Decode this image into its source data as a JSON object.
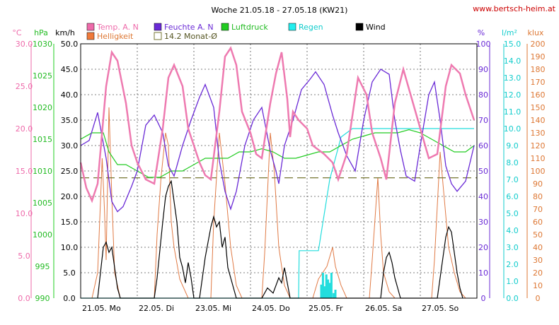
{
  "chart_data": {
    "type": "line",
    "title": "Woche 21.05.18 - 27.05.18 (KW21)",
    "source": "www.bertsch-heim.at",
    "x_days": [
      "21.05.",
      "22.05.",
      "23.05.",
      "24.05.",
      "25.05.",
      "26.05.",
      "27.05."
    ],
    "x_day_labels": [
      "Mo",
      "Di",
      "Mi",
      "Do",
      "Fr",
      "Sa",
      "So"
    ],
    "legend": {
      "temp": "Temp. A. N",
      "feuchte": "Feuchte A. N",
      "luftdruck": "Luftdruck",
      "regen": "Regen",
      "wind": "Wind",
      "helligkeit": "Helligkeit",
      "monat": "14.2 Monat-Ø"
    },
    "axes": {
      "temp": {
        "unit": "°C",
        "min": 0,
        "max": 30,
        "ticks": [
          "0.0",
          "5.0",
          "10.0",
          "15.0",
          "20.0",
          "25.0",
          "30.0"
        ],
        "color": "#ee6aaa"
      },
      "druck": {
        "unit": "hPa",
        "min": 990,
        "max": 1030,
        "ticks": [
          "990",
          "995",
          "1000",
          "1005",
          "1010",
          "1015",
          "1020",
          "1025",
          "1030"
        ],
        "color": "#22bb22"
      },
      "wind": {
        "unit": "km/h",
        "min": 0,
        "max": 50,
        "ticks": [
          "0.0",
          "5.0",
          "10.0",
          "15.0",
          "20.0",
          "25.0",
          "30.0",
          "35.0",
          "40.0",
          "45.0",
          "50.0"
        ],
        "color": "#000000"
      },
      "feuchte": {
        "unit": "%",
        "min": 0,
        "max": 100,
        "ticks": [
          "0",
          "10",
          "20",
          "30",
          "40",
          "50",
          "60",
          "70",
          "80",
          "90",
          "100"
        ],
        "color": "#6a2ad6"
      },
      "regen": {
        "unit": "l/m²",
        "min": 0,
        "max": 15,
        "ticks": [
          "0.0",
          "1.0",
          "2.0",
          "3.0",
          "4.0",
          "5.0",
          "6.0",
          "7.0",
          "8.0",
          "9.0",
          "10.0",
          "11.0",
          "12.0",
          "13.0",
          "14.0",
          "15.0"
        ],
        "color": "#11cccc"
      },
      "klux": {
        "unit": "klux",
        "min": 0,
        "max": 200,
        "ticks": [
          "0",
          "10",
          "20",
          "30",
          "40",
          "50",
          "60",
          "70",
          "80",
          "90",
          "100",
          "110",
          "120",
          "130",
          "140",
          "150",
          "160",
          "170",
          "180",
          "190",
          "200"
        ],
        "color": "#dd7733"
      }
    },
    "monat_avg_temp": 14.2,
    "series": {
      "temp": [
        [
          0,
          16
        ],
        [
          0.1,
          13
        ],
        [
          0.2,
          11.5
        ],
        [
          0.3,
          13.5
        ],
        [
          0.45,
          25
        ],
        [
          0.55,
          29
        ],
        [
          0.65,
          28
        ],
        [
          0.8,
          23
        ],
        [
          0.9,
          18
        ],
        [
          1.0,
          16
        ],
        [
          1.15,
          14
        ],
        [
          1.3,
          13.5
        ],
        [
          1.45,
          20
        ],
        [
          1.55,
          26
        ],
        [
          1.65,
          27.5
        ],
        [
          1.8,
          25
        ],
        [
          1.9,
          20
        ],
        [
          2.0,
          18
        ],
        [
          2.1,
          16
        ],
        [
          2.2,
          14.5
        ],
        [
          2.3,
          14
        ],
        [
          2.45,
          22
        ],
        [
          2.55,
          28.5
        ],
        [
          2.65,
          29.5
        ],
        [
          2.75,
          27.5
        ],
        [
          2.85,
          22
        ],
        [
          3.0,
          19.5
        ],
        [
          3.1,
          17
        ],
        [
          3.2,
          16.5
        ],
        [
          3.35,
          23
        ],
        [
          3.45,
          26.5
        ],
        [
          3.55,
          29
        ],
        [
          3.65,
          23.5
        ],
        [
          3.7,
          19
        ],
        [
          3.75,
          22
        ],
        [
          3.85,
          21
        ],
        [
          4.0,
          20
        ],
        [
          4.1,
          18
        ],
        [
          4.3,
          17
        ],
        [
          4.45,
          16
        ],
        [
          4.55,
          14
        ],
        [
          4.7,
          17
        ],
        [
          4.9,
          26
        ],
        [
          5.05,
          24
        ],
        [
          5.15,
          19.5
        ],
        [
          5.3,
          16.5
        ],
        [
          5.4,
          14
        ],
        [
          5.55,
          23
        ],
        [
          5.7,
          27
        ],
        [
          5.85,
          23.5
        ],
        [
          6.0,
          20
        ],
        [
          6.15,
          16.5
        ],
        [
          6.3,
          17
        ],
        [
          6.45,
          25
        ],
        [
          6.55,
          27.5
        ],
        [
          6.7,
          26.5
        ],
        [
          6.8,
          24
        ],
        [
          6.95,
          21
        ]
      ],
      "feuchte": [
        [
          0,
          60
        ],
        [
          0.15,
          62
        ],
        [
          0.3,
          73
        ],
        [
          0.45,
          55
        ],
        [
          0.55,
          38
        ],
        [
          0.65,
          34
        ],
        [
          0.75,
          36
        ],
        [
          0.9,
          44
        ],
        [
          1.0,
          50
        ],
        [
          1.15,
          68
        ],
        [
          1.3,
          72
        ],
        [
          1.45,
          65
        ],
        [
          1.55,
          52
        ],
        [
          1.65,
          48
        ],
        [
          1.8,
          60
        ],
        [
          1.95,
          70
        ],
        [
          2.1,
          79
        ],
        [
          2.2,
          84
        ],
        [
          2.35,
          75
        ],
        [
          2.45,
          54
        ],
        [
          2.55,
          42
        ],
        [
          2.65,
          35
        ],
        [
          2.75,
          42
        ],
        [
          2.9,
          60
        ],
        [
          3.05,
          70
        ],
        [
          3.2,
          75
        ],
        [
          3.35,
          58
        ],
        [
          3.45,
          50
        ],
        [
          3.5,
          45
        ],
        [
          3.6,
          60
        ],
        [
          3.75,
          70
        ],
        [
          3.9,
          82
        ],
        [
          4.05,
          86
        ],
        [
          4.15,
          89
        ],
        [
          4.3,
          84
        ],
        [
          4.45,
          72
        ],
        [
          4.55,
          65
        ],
        [
          4.7,
          56
        ],
        [
          4.85,
          50
        ],
        [
          5.0,
          70
        ],
        [
          5.15,
          85
        ],
        [
          5.3,
          90
        ],
        [
          5.45,
          88
        ],
        [
          5.55,
          70
        ],
        [
          5.65,
          58
        ],
        [
          5.75,
          48
        ],
        [
          5.9,
          46
        ],
        [
          6.0,
          60
        ],
        [
          6.15,
          80
        ],
        [
          6.25,
          85
        ],
        [
          6.35,
          70
        ],
        [
          6.45,
          52
        ],
        [
          6.55,
          45
        ],
        [
          6.65,
          42
        ],
        [
          6.8,
          46
        ],
        [
          6.95,
          60
        ]
      ],
      "luftdruck": [
        [
          0,
          1015
        ],
        [
          0.2,
          1016
        ],
        [
          0.4,
          1016
        ],
        [
          0.5,
          1013
        ],
        [
          0.65,
          1011
        ],
        [
          0.8,
          1011
        ],
        [
          1.0,
          1010
        ],
        [
          1.2,
          1009
        ],
        [
          1.4,
          1009
        ],
        [
          1.6,
          1010
        ],
        [
          1.8,
          1010
        ],
        [
          2.0,
          1011
        ],
        [
          2.2,
          1012
        ],
        [
          2.4,
          1012
        ],
        [
          2.6,
          1012
        ],
        [
          2.8,
          1013
        ],
        [
          3.0,
          1013
        ],
        [
          3.2,
          1013.5
        ],
        [
          3.4,
          1013
        ],
        [
          3.6,
          1012
        ],
        [
          3.8,
          1012
        ],
        [
          4.0,
          1012.5
        ],
        [
          4.2,
          1013
        ],
        [
          4.4,
          1013
        ],
        [
          4.6,
          1014
        ],
        [
          4.8,
          1015
        ],
        [
          5.0,
          1015.5
        ],
        [
          5.2,
          1016
        ],
        [
          5.4,
          1016
        ],
        [
          5.6,
          1016
        ],
        [
          5.8,
          1016.5
        ],
        [
          6.0,
          1016
        ],
        [
          6.2,
          1015
        ],
        [
          6.4,
          1014
        ],
        [
          6.6,
          1013
        ],
        [
          6.8,
          1013
        ],
        [
          6.95,
          1014
        ]
      ],
      "regen_cumulative": [
        [
          0,
          0
        ],
        [
          3.85,
          0
        ],
        [
          3.86,
          2.8
        ],
        [
          4.2,
          2.8
        ],
        [
          4.4,
          7
        ],
        [
          4.6,
          9.5
        ],
        [
          4.8,
          10
        ],
        [
          6.95,
          10
        ]
      ],
      "regen_bars": [
        [
          4.25,
          0.8
        ],
        [
          4.28,
          1.5
        ],
        [
          4.31,
          0.7
        ],
        [
          4.34,
          1.4
        ],
        [
          4.37,
          1.1
        ],
        [
          4.4,
          0.9
        ],
        [
          4.43,
          1.5
        ],
        [
          4.47,
          0.3
        ],
        [
          4.5,
          0.5
        ]
      ],
      "wind": [
        [
          0.3,
          0
        ],
        [
          0.35,
          5
        ],
        [
          0.4,
          10
        ],
        [
          0.45,
          11
        ],
        [
          0.5,
          9
        ],
        [
          0.55,
          10
        ],
        [
          0.6,
          6
        ],
        [
          0.65,
          2
        ],
        [
          0.7,
          0
        ],
        [
          1.3,
          0
        ],
        [
          1.35,
          4
        ],
        [
          1.45,
          15
        ],
        [
          1.5,
          20
        ],
        [
          1.55,
          22
        ],
        [
          1.6,
          23
        ],
        [
          1.7,
          15
        ],
        [
          1.75,
          8
        ],
        [
          1.8,
          6
        ],
        [
          1.85,
          3
        ],
        [
          1.9,
          7
        ],
        [
          1.95,
          4
        ],
        [
          2.0,
          0
        ],
        [
          2.1,
          0
        ],
        [
          2.2,
          8
        ],
        [
          2.3,
          14
        ],
        [
          2.35,
          16
        ],
        [
          2.4,
          14
        ],
        [
          2.45,
          15
        ],
        [
          2.5,
          10
        ],
        [
          2.55,
          12
        ],
        [
          2.6,
          6
        ],
        [
          2.7,
          2
        ],
        [
          2.75,
          0
        ],
        [
          3.2,
          0
        ],
        [
          3.3,
          2
        ],
        [
          3.4,
          1
        ],
        [
          3.5,
          4
        ],
        [
          3.55,
          3
        ],
        [
          3.6,
          6
        ],
        [
          3.65,
          3
        ],
        [
          3.7,
          0
        ],
        [
          5.3,
          0
        ],
        [
          5.35,
          5
        ],
        [
          5.4,
          8
        ],
        [
          5.45,
          9
        ],
        [
          5.5,
          7
        ],
        [
          5.55,
          4
        ],
        [
          5.6,
          2
        ],
        [
          5.65,
          0
        ],
        [
          6.3,
          0
        ],
        [
          6.4,
          8
        ],
        [
          6.45,
          12
        ],
        [
          6.5,
          14
        ],
        [
          6.55,
          13
        ],
        [
          6.6,
          9
        ],
        [
          6.65,
          5
        ],
        [
          6.7,
          2
        ],
        [
          6.75,
          0
        ]
      ],
      "helligkeit": [
        [
          0.2,
          0
        ],
        [
          0.3,
          20
        ],
        [
          0.38,
          110
        ],
        [
          0.42,
          70
        ],
        [
          0.45,
          30
        ],
        [
          0.5,
          150
        ],
        [
          0.55,
          80
        ],
        [
          0.6,
          20
        ],
        [
          0.7,
          0
        ],
        [
          1.3,
          0
        ],
        [
          1.35,
          50
        ],
        [
          1.42,
          95
        ],
        [
          1.5,
          130
        ],
        [
          1.55,
          120
        ],
        [
          1.6,
          60
        ],
        [
          1.65,
          40
        ],
        [
          1.75,
          15
        ],
        [
          1.9,
          0
        ],
        [
          2.3,
          0
        ],
        [
          2.35,
          60
        ],
        [
          2.45,
          130
        ],
        [
          2.55,
          90
        ],
        [
          2.65,
          40
        ],
        [
          2.75,
          10
        ],
        [
          2.85,
          0
        ],
        [
          3.2,
          0
        ],
        [
          3.25,
          35
        ],
        [
          3.35,
          130
        ],
        [
          3.42,
          100
        ],
        [
          3.5,
          40
        ],
        [
          3.6,
          10
        ],
        [
          3.7,
          0
        ],
        [
          4.1,
          0
        ],
        [
          4.2,
          15
        ],
        [
          4.35,
          25
        ],
        [
          4.45,
          40
        ],
        [
          4.5,
          25
        ],
        [
          4.6,
          10
        ],
        [
          4.7,
          0
        ],
        [
          5.1,
          0
        ],
        [
          5.15,
          30
        ],
        [
          5.25,
          95
        ],
        [
          5.3,
          50
        ],
        [
          5.35,
          20
        ],
        [
          5.45,
          5
        ],
        [
          5.55,
          0
        ],
        [
          6.2,
          0
        ],
        [
          6.25,
          30
        ],
        [
          6.35,
          115
        ],
        [
          6.42,
          80
        ],
        [
          6.5,
          40
        ],
        [
          6.6,
          20
        ],
        [
          6.7,
          5
        ],
        [
          6.8,
          0
        ]
      ]
    }
  }
}
